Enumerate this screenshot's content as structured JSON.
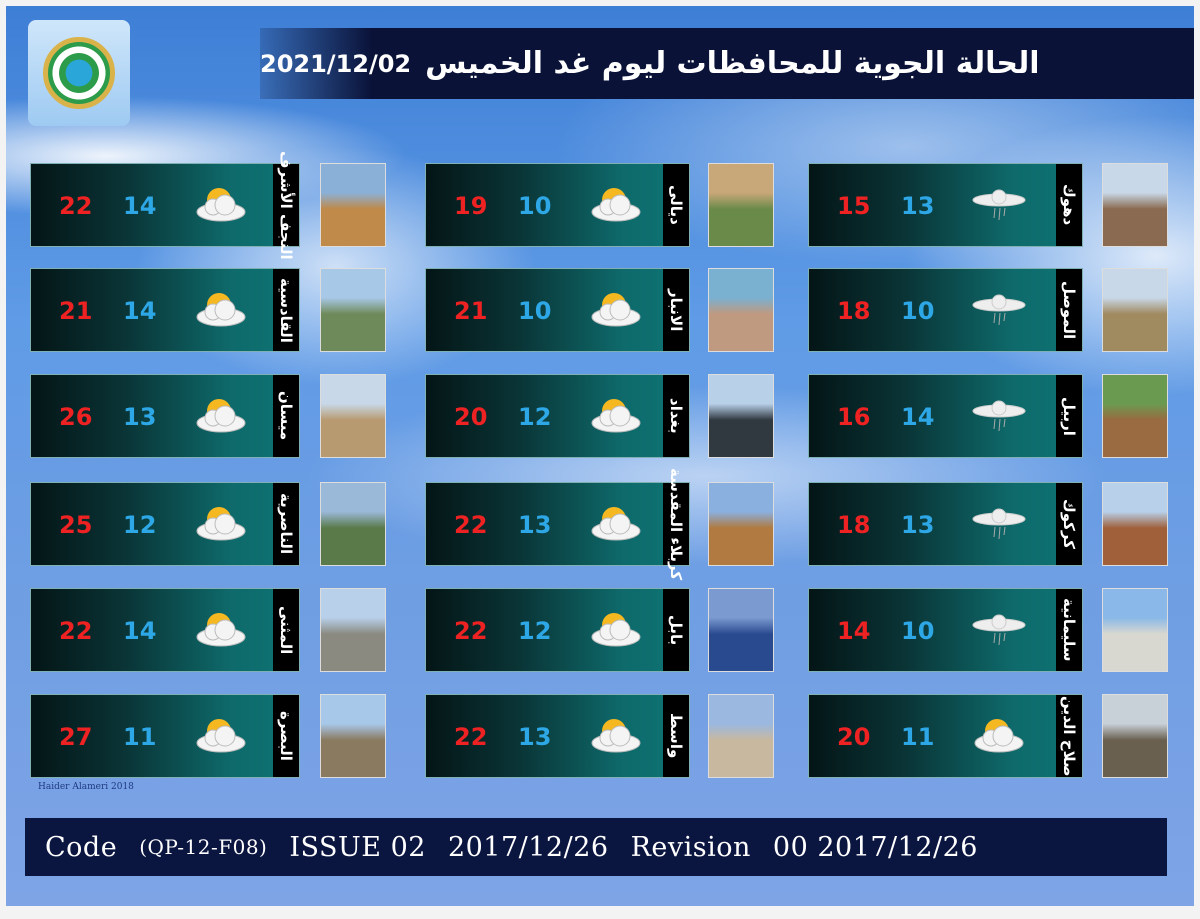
{
  "header": {
    "title": "الحالة الجوية للمحافظات ليوم غد الخميس",
    "date": "2021/12/02"
  },
  "credit": "Haider Alameri 2018",
  "footer": {
    "code_label": "Code",
    "code": "(QP-12-F08)",
    "issue_label": "ISSUE 02",
    "issue_date": "2017/12/26",
    "revision_label": "Revision",
    "revision": "00 2017/12/26"
  },
  "colors": {
    "max": "#ee2222",
    "min": "#2ea7e6",
    "header": "#0a1238"
  },
  "columns": [
    [
      {
        "name": "النجف الأشرف",
        "max": 22,
        "min": 14,
        "icon": "partly-cloudy",
        "photo": [
          "#c08a4a",
          "#8ab0d8"
        ]
      },
      {
        "name": "القادسية",
        "max": 21,
        "min": 14,
        "icon": "partly-cloudy",
        "photo": [
          "#6f8a5a",
          "#a8c8e8"
        ]
      },
      {
        "name": "ميسان",
        "max": 26,
        "min": 13,
        "icon": "partly-cloudy",
        "photo": [
          "#b89a70",
          "#c8d8e8"
        ]
      },
      {
        "name": "الناصرية",
        "max": 25,
        "min": 12,
        "icon": "partly-cloudy",
        "photo": [
          "#5a7a4a",
          "#9ab8d8"
        ]
      },
      {
        "name": "المثنى",
        "max": 22,
        "min": 14,
        "icon": "partly-cloudy",
        "photo": [
          "#8a8a80",
          "#b8d0ea"
        ]
      },
      {
        "name": "البصرة",
        "max": 27,
        "min": 11,
        "icon": "partly-cloudy",
        "photo": [
          "#8a7a60",
          "#a8c8ea"
        ]
      }
    ],
    [
      {
        "name": "ديالى",
        "max": 19,
        "min": 10,
        "icon": "partly-cloudy",
        "photo": [
          "#6a8a4a",
          "#c8a878"
        ]
      },
      {
        "name": "الانبار",
        "max": 21,
        "min": 10,
        "icon": "partly-cloudy",
        "photo": [
          "#c09a80",
          "#7ab0d0"
        ]
      },
      {
        "name": "بغداد",
        "max": 20,
        "min": 12,
        "icon": "partly-cloudy",
        "photo": [
          "#303840",
          "#b8d0e8"
        ]
      },
      {
        "name": "كربلاء المقدسة",
        "max": 22,
        "min": 13,
        "icon": "partly-cloudy",
        "photo": [
          "#b07a40",
          "#8ab0e0"
        ]
      },
      {
        "name": "بابل",
        "max": 22,
        "min": 12,
        "icon": "partly-cloudy",
        "photo": [
          "#2a4a90",
          "#7a9ad0"
        ]
      },
      {
        "name": "واسط",
        "max": 22,
        "min": 13,
        "icon": "partly-cloudy",
        "photo": [
          "#c8b8a0",
          "#9ab8e0"
        ]
      }
    ],
    [
      {
        "name": "دهوك",
        "max": 15,
        "min": 13,
        "icon": "cloud-rain",
        "photo": [
          "#8a6a50",
          "#c8d8e8"
        ]
      },
      {
        "name": "الموصل",
        "max": 18,
        "min": 10,
        "icon": "cloud-rain",
        "photo": [
          "#a08a60",
          "#c8d8e8"
        ]
      },
      {
        "name": "اربيل",
        "max": 16,
        "min": 14,
        "icon": "cloud-rain",
        "photo": [
          "#9a6a40",
          "#6a9a50"
        ]
      },
      {
        "name": "كركوك",
        "max": 18,
        "min": 13,
        "icon": "cloud-rain",
        "photo": [
          "#a0603a",
          "#b8d0ea"
        ]
      },
      {
        "name": "سليمانية",
        "max": 14,
        "min": 10,
        "icon": "cloud-rain",
        "photo": [
          "#d8d8d0",
          "#8ab8e8"
        ]
      },
      {
        "name": "صلاح الدين",
        "max": 20,
        "min": 11,
        "icon": "partly-cloudy",
        "photo": [
          "#6a6050",
          "#c8d0d8"
        ]
      }
    ]
  ]
}
